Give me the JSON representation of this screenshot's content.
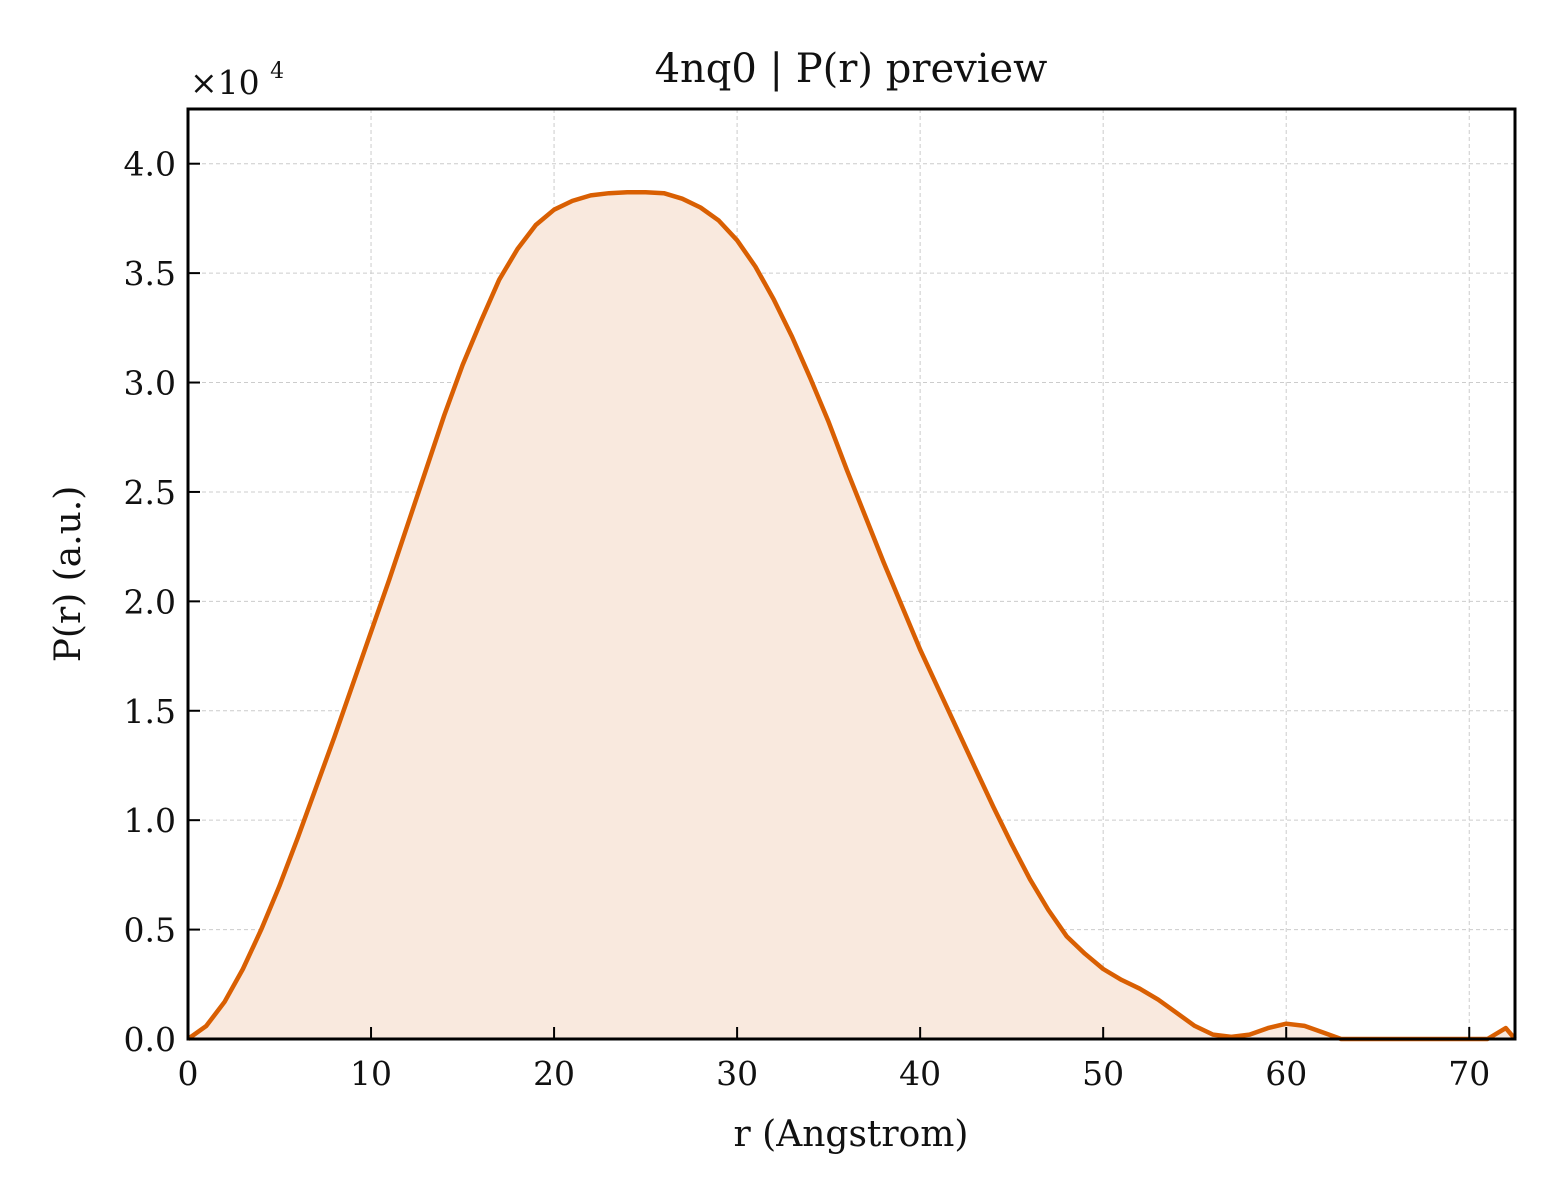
{
  "chart_data": {
    "type": "area",
    "title": "4nq0 | P(r) preview",
    "xlabel": "r (Angstrom)",
    "ylabel": "P(r) (a.u.)",
    "y_multiplier": "×10",
    "y_multiplier_exponent": "4",
    "xlim": [
      0,
      72.5
    ],
    "ylim": [
      0,
      4.25
    ],
    "x_ticks": [
      0,
      10,
      20,
      30,
      40,
      50,
      60,
      70
    ],
    "x_tick_labels": [
      "0",
      "10",
      "20",
      "30",
      "40",
      "50",
      "60",
      "70"
    ],
    "y_ticks": [
      0,
      0.5,
      1.0,
      1.5,
      2.0,
      2.5,
      3.0,
      3.5,
      4.0
    ],
    "y_tick_labels": [
      "0.0",
      "0.5",
      "1.0",
      "1.5",
      "2.0",
      "2.5",
      "3.0",
      "3.5",
      "4.0"
    ],
    "grid": true,
    "line_color": "#d95f02",
    "fill_color": "#f9e9de",
    "series": [
      {
        "x": [
          0,
          1,
          2,
          3,
          4,
          5,
          6,
          7,
          8,
          9,
          10,
          11,
          12,
          13,
          14,
          15,
          16,
          17,
          18,
          19,
          20,
          21,
          22,
          23,
          24,
          25,
          26,
          27,
          28,
          29,
          30,
          31,
          32,
          33,
          34,
          35,
          36,
          37,
          38,
          39,
          40,
          41,
          42,
          43,
          44,
          45,
          46,
          47,
          48,
          49,
          50,
          51,
          52,
          53,
          54,
          55,
          56,
          57,
          58,
          59,
          60,
          61,
          62,
          63,
          64,
          65,
          66,
          67,
          68,
          69,
          70,
          71,
          72,
          72.5
        ],
        "y": [
          0.0,
          0.06,
          0.17,
          0.32,
          0.5,
          0.7,
          0.92,
          1.15,
          1.38,
          1.62,
          1.86,
          2.1,
          2.35,
          2.6,
          2.85,
          3.08,
          3.28,
          3.47,
          3.61,
          3.72,
          3.79,
          3.83,
          3.855,
          3.865,
          3.87,
          3.87,
          3.865,
          3.84,
          3.8,
          3.74,
          3.65,
          3.53,
          3.38,
          3.21,
          3.02,
          2.82,
          2.6,
          2.39,
          2.18,
          1.98,
          1.78,
          1.6,
          1.42,
          1.24,
          1.06,
          0.89,
          0.73,
          0.59,
          0.47,
          0.39,
          0.32,
          0.27,
          0.23,
          0.18,
          0.12,
          0.06,
          0.02,
          0.01,
          0.02,
          0.05,
          0.07,
          0.06,
          0.03,
          0.0,
          0.0,
          0.0,
          0.0,
          0.0,
          0.0,
          0.0,
          0.0,
          0.0,
          0.05,
          0.0
        ]
      }
    ]
  }
}
